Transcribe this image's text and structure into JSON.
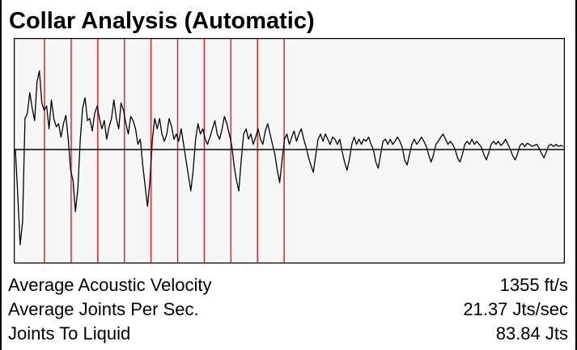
{
  "panel": {
    "title": "Collar Analysis (Automatic)"
  },
  "stats": [
    {
      "label": "Average Acoustic Velocity",
      "value": "1355 ft/s"
    },
    {
      "label": "Average Joints Per Sec.",
      "value": "21.37 Jts/sec"
    },
    {
      "label": "Joints To Liquid",
      "value": "83.84 Jts"
    }
  ],
  "colors": {
    "plot_background": "#f7f7f7",
    "trace": "#000000",
    "collar_marker": "#e8222c",
    "border": "#000000"
  },
  "chart_data": {
    "type": "line",
    "title": "",
    "xlabel": "",
    "ylabel": "",
    "grid": false,
    "legend": "none",
    "ylim": [
      -1,
      1
    ],
    "collar_markers": [
      11,
      22.5,
      33.5,
      44.5,
      55.5,
      67,
      78,
      89,
      100,
      111
    ],
    "series": [
      {
        "values": [
          0,
          -0.45,
          -0.92,
          -0.7,
          0.3,
          0.35,
          0.55,
          0.4,
          0.28,
          0.65,
          0.76,
          0.45,
          0.38,
          0.42,
          0.2,
          0.48,
          0.3,
          0.22,
          0.25,
          0.12,
          0.25,
          0.33,
          0.1,
          -0.2,
          -0.3,
          -0.6,
          -0.38,
          0.1,
          0.4,
          0.5,
          0.28,
          0.3,
          0.18,
          0.35,
          0.42,
          0.3,
          0.2,
          0.28,
          0.1,
          0.22,
          0.3,
          0.48,
          0.3,
          0.2,
          0.45,
          0.38,
          0.25,
          0.15,
          0.32,
          0.28,
          0.2,
          0.05,
          0.1,
          -0.15,
          -0.35,
          -0.55,
          -0.3,
          0.1,
          0.3,
          0.2,
          0.3,
          0.15,
          0.08,
          0.15,
          0.3,
          0.22,
          0.1,
          0.15,
          0.08,
          0.2,
          0.05,
          -0.1,
          -0.25,
          -0.4,
          -0.2,
          0.1,
          0.25,
          0.15,
          0.2,
          0.1,
          0.05,
          0.12,
          0.2,
          0.28,
          0.15,
          0.1,
          0.2,
          0.32,
          0.25,
          0.15,
          0.05,
          -0.15,
          -0.3,
          -0.4,
          -0.1,
          0.15,
          0.2,
          0.1,
          0.15,
          0.05,
          0.12,
          0.2,
          0.1,
          0.05,
          0.18,
          0.25,
          0.15,
          0.05,
          -0.05,
          -0.2,
          -0.32,
          -0.1,
          0.1,
          0.15,
          0.05,
          0.12,
          0.18,
          0.08,
          0.15,
          0.2,
          0.1,
          0.02,
          -0.08,
          -0.15,
          -0.22,
          -0.05,
          0.1,
          0.15,
          0.08,
          0.15,
          0.1,
          0.05,
          0.12,
          0.1,
          0.05,
          0.1,
          -0.02,
          -0.12,
          -0.2,
          -0.1,
          0.05,
          0.12,
          0.05,
          0.1,
          0.05,
          0.1,
          0.08,
          0.12,
          0.05,
          0,
          -0.12,
          -0.18,
          -0.05,
          0.08,
          0.1,
          0.05,
          0.1,
          0.05,
          0.08,
          0.12,
          0.08,
          0.02,
          -0.1,
          -0.15,
          -0.05,
          0.05,
          0.1,
          0.05,
          0.08,
          0.12,
          0.08,
          0.03,
          -0.05,
          -0.12,
          -0.05,
          0.05,
          0.08,
          0.12,
          0.15,
          0.1,
          0.05,
          0.08,
          0.05,
          0,
          -0.08,
          -0.12,
          -0.05,
          0.05,
          0.08,
          0.05,
          0.1,
          0.05,
          0.08,
          0.05,
          0.02,
          -0.05,
          -0.1,
          -0.03,
          0.05,
          0.08,
          0.05,
          0.08,
          0.04,
          0.06,
          0.1,
          0.05,
          0,
          -0.06,
          -0.1,
          -0.04,
          0.04,
          0.06,
          0.03,
          0.06,
          0.05,
          0.03,
          0.04,
          0.05,
          0.01,
          -0.04,
          -0.08,
          -0.02,
          0.04,
          0.05,
          0.03,
          0.05,
          0.03,
          0.04,
          0.03
        ]
      }
    ]
  }
}
